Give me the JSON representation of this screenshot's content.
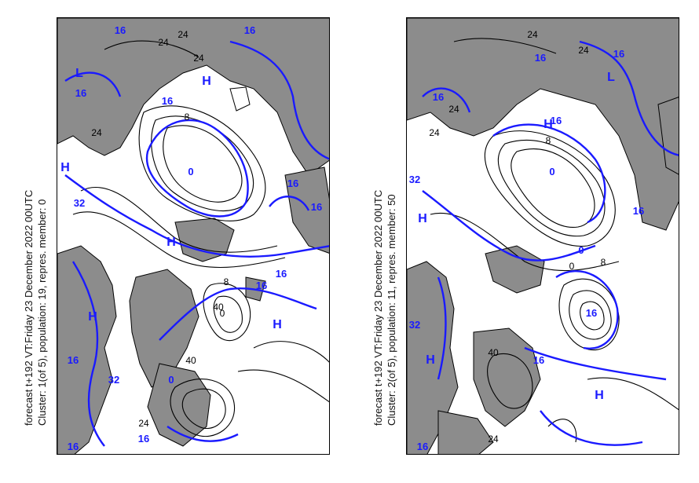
{
  "panels": [
    {
      "caption_line1": "forecast t+192 VT:Friday 23 December 2022 00UTC",
      "caption_line2": "Cluster: 1(of 5), population: 19, repres. member: 0",
      "blue_labels": [
        "16",
        "16",
        "16",
        "16",
        "16",
        "16",
        "16",
        "16",
        "32",
        "32",
        "0",
        "0",
        "H",
        "H",
        "H",
        "H",
        "H",
        "L",
        "16",
        "16",
        "16"
      ],
      "black_labels": [
        "24",
        "24",
        "24",
        "24",
        "8",
        "8",
        "0",
        "40",
        "40",
        "24"
      ]
    },
    {
      "caption_line1": "forecast t+192 VT:Friday 23 December 2022 00UTC",
      "caption_line2": "Cluster: 2(of 5), population: 11, repres. member: 50",
      "blue_labels": [
        "16",
        "16",
        "16",
        "16",
        "16",
        "16",
        "32",
        "32",
        "0",
        "0",
        "H",
        "H",
        "H",
        "H",
        "L",
        "16",
        "16"
      ],
      "black_labels": [
        "24",
        "24",
        "24",
        "8",
        "8",
        "0",
        "40",
        "24",
        "24"
      ]
    }
  ],
  "colors": {
    "land": "#8c8c8c",
    "sea": "#ffffff",
    "blue_contour": "#1a1aff",
    "black_contour": "#000000"
  }
}
